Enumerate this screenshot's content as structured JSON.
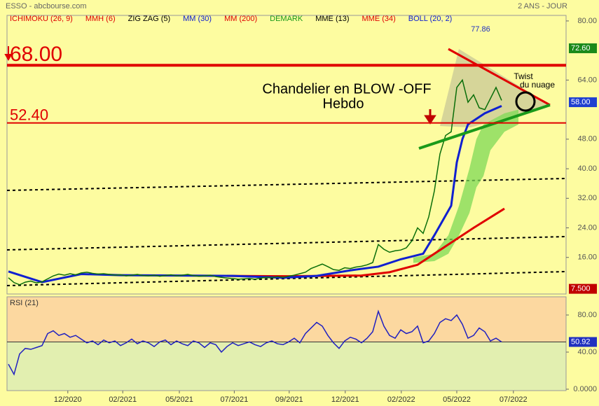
{
  "chart_data": {
    "type": "line",
    "title": "ESSO - abcbourse.com",
    "subtitle": "2 ANS - JOUR",
    "indicators": [
      {
        "name": "ICHIMOKU (26, 9)",
        "color": "#e00000"
      },
      {
        "name": "MMH (6)",
        "color": "#e00000"
      },
      {
        "name": "ZIG ZAG (5)",
        "color": "#000000"
      },
      {
        "name": "MM (30)",
        "color": "#1020d0"
      },
      {
        "name": "MM (200)",
        "color": "#e00000"
      },
      {
        "name": "DEMARK",
        "color": "#1a9a1a"
      },
      {
        "name": "MME (13)",
        "color": "#000000"
      },
      {
        "name": "MME (34)",
        "color": "#e00000"
      },
      {
        "name": "BOLL (20, 2)",
        "color": "#1020d0"
      }
    ],
    "xlim": [
      0,
      99
    ],
    "xticks": [
      {
        "value": 10.6,
        "label": "12/2020"
      },
      {
        "value": 20.4,
        "label": "02/2021"
      },
      {
        "value": 30.5,
        "label": "05/2021"
      },
      {
        "value": 40.3,
        "label": "07/2021"
      },
      {
        "value": 50.1,
        "label": "09/2021"
      },
      {
        "value": 60.1,
        "label": "12/2021"
      },
      {
        "value": 70.1,
        "label": "02/2022"
      },
      {
        "value": 80,
        "label": "05/2022"
      },
      {
        "value": 90.1,
        "label": "07/2022"
      }
    ],
    "ylim": [
      6.1,
      81.5
    ],
    "yticks": [
      {
        "value": 80,
        "label": "80.00"
      },
      {
        "value": 64,
        "label": "64.00"
      },
      {
        "value": 48,
        "label": "48.00"
      },
      {
        "value": 40,
        "label": "40.00"
      },
      {
        "value": 32,
        "label": "32.00"
      },
      {
        "value": 24,
        "label": "24.00"
      },
      {
        "value": 16,
        "label": "16.00"
      }
    ],
    "price": {
      "color": "#0a6e0a",
      "values": [
        10.5,
        9.2,
        8.6,
        9.3,
        9.6,
        9.1,
        9.4,
        10.2,
        11.0,
        11.5,
        11.2,
        11.6,
        11.3,
        11.8,
        12.0,
        11.7,
        11.5,
        11.6,
        11.4,
        11.2,
        11.3,
        11.0,
        11.2,
        11.4,
        11.1,
        11.0,
        11.2,
        10.9,
        11.1,
        11.3,
        11.0,
        11.2,
        11.4,
        11.1,
        10.9,
        11.0,
        11.2,
        10.8,
        10.6,
        10.4,
        10.3,
        10.1,
        10.2,
        10.3,
        10.1,
        10.4,
        10.6,
        10.5,
        10.8,
        10.6,
        10.9,
        11.2,
        11.6,
        12.0,
        13.0,
        13.6,
        14.2,
        13.5,
        12.7,
        12.5,
        13.2,
        13.0,
        13.4,
        13.6,
        14.0,
        14.6,
        19.5,
        18.2,
        17.4,
        17.8,
        18.0,
        18.6,
        20.5,
        24.0,
        22.5,
        27.0,
        34.0,
        44.0,
        49.0,
        50.0,
        62.0,
        64.0,
        58.0,
        60.0,
        56.5,
        56.0,
        59.0,
        62.0,
        58.5
      ]
    },
    "mm30": {
      "color": "#1020d0",
      "x": [
        0,
        6,
        13,
        20,
        40,
        49,
        55,
        61,
        66,
        70,
        74,
        76,
        79,
        80,
        81,
        82,
        85,
        88
      ],
      "values": [
        12.2,
        9.3,
        11.5,
        11.2,
        11.0,
        10.5,
        11.0,
        12.5,
        13.5,
        15.5,
        17.0,
        22.0,
        30.0,
        41.7,
        48.0,
        52.0,
        55.0,
        57.0
      ]
    },
    "mm200": {
      "color": "#e00000",
      "x": [
        39,
        50,
        63,
        68,
        73,
        78,
        83,
        88.5
      ],
      "values": [
        11.0,
        10.9,
        11.1,
        12.0,
        14.0,
        19.0,
        24.0,
        29.2
      ]
    },
    "cloud": {
      "color": "#7ed957",
      "x": [
        72.25,
        76,
        78.5,
        80.4,
        82.25,
        83.5,
        84.75,
        86,
        88.5,
        91
      ],
      "upper": [
        16,
        17,
        22,
        30,
        40,
        48,
        52,
        53,
        55,
        56
      ],
      "lower": [
        14.5,
        15,
        17,
        22,
        28,
        35,
        38,
        45,
        50,
        52
      ]
    },
    "levels": [
      {
        "value": 68,
        "label": "68.00",
        "color": "#e00000"
      },
      {
        "value": 52.4,
        "label": "52.40",
        "color": "#e00000"
      }
    ],
    "markers": [
      {
        "value": 72.6,
        "label": "72.60",
        "color": "#1a8a1a"
      },
      {
        "value": 58,
        "label": "58.00",
        "color": "#2040d0"
      },
      {
        "value": 7.5,
        "label": "7.500",
        "color": "#c00000"
      }
    ],
    "peak": {
      "value": 77.86,
      "label": "77.86"
    },
    "annotations": [
      "Chandelier en BLOW -OFF",
      "Hebdo",
      "Twist",
      "du nuage"
    ],
    "rsi": {
      "title": "RSI (21)",
      "color": "#2020c0",
      "ylim": [
        0,
        100
      ],
      "yticks": [
        {
          "value": 80,
          "label": "80.00"
        },
        {
          "value": 40,
          "label": "40.00"
        },
        {
          "value": 0,
          "label": "0.0000"
        }
      ],
      "last": {
        "value": 50.92,
        "label": "50.92"
      },
      "values": [
        27,
        16,
        38,
        44,
        43,
        45,
        47,
        60,
        63,
        58,
        60,
        56,
        58,
        54,
        50,
        52,
        48,
        53,
        50,
        52,
        47,
        50,
        54,
        49,
        52,
        50,
        46,
        51,
        53,
        48,
        52,
        49,
        47,
        52,
        50,
        45,
        50,
        48,
        40,
        46,
        50,
        47,
        49,
        51,
        48,
        46,
        50,
        52,
        49,
        48,
        51,
        55,
        50,
        60,
        66,
        72,
        68,
        58,
        50,
        44,
        52,
        56,
        54,
        50,
        55,
        62,
        84,
        68,
        58,
        55,
        64,
        60,
        62,
        68,
        50,
        52,
        60,
        72,
        76,
        74,
        80,
        70,
        55,
        58,
        66,
        62,
        52,
        55,
        50.92
      ]
    }
  }
}
